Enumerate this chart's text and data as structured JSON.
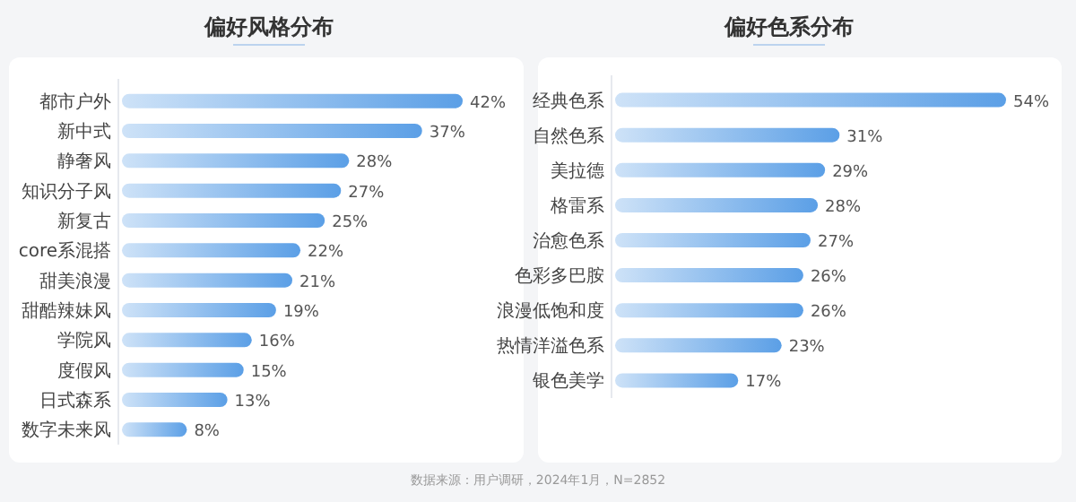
{
  "chart_data": [
    {
      "type": "bar",
      "orientation": "horizontal",
      "title": "偏好风格分布",
      "categories": [
        "都市户外",
        "新中式",
        "静奢风",
        "知识分子风",
        "新复古",
        "core系混搭",
        "甜美浪漫",
        "甜酷辣妹风",
        "学院风",
        "度假风",
        "日式森系",
        "数字未来风"
      ],
      "values": [
        42,
        37,
        28,
        27,
        25,
        22,
        21,
        19,
        16,
        15,
        13,
        8
      ],
      "value_labels": [
        "42%",
        "37%",
        "28%",
        "27%",
        "25%",
        "22%",
        "21%",
        "19%",
        "16%",
        "15%",
        "13%",
        "8%"
      ],
      "color": "#5b9fe6"
    },
    {
      "type": "bar",
      "orientation": "horizontal",
      "title": "偏好色系分布",
      "categories": [
        "经典色系",
        "自然色系",
        "美拉德",
        "格雷系",
        "治愈色系",
        "色彩多巴胺",
        "浪漫低饱和度",
        "热情洋溢色系",
        "银色美学"
      ],
      "values": [
        54,
        31,
        29,
        28,
        27,
        26,
        26,
        23,
        17
      ],
      "value_labels": [
        "54%",
        "31%",
        "29%",
        "28%",
        "27%",
        "26%",
        "26%",
        "23%",
        "17%"
      ],
      "color": "#5b9fe6",
      "annotations": [
        "数据来源：用户调研，2024年1月，N=2852"
      ]
    }
  ]
}
